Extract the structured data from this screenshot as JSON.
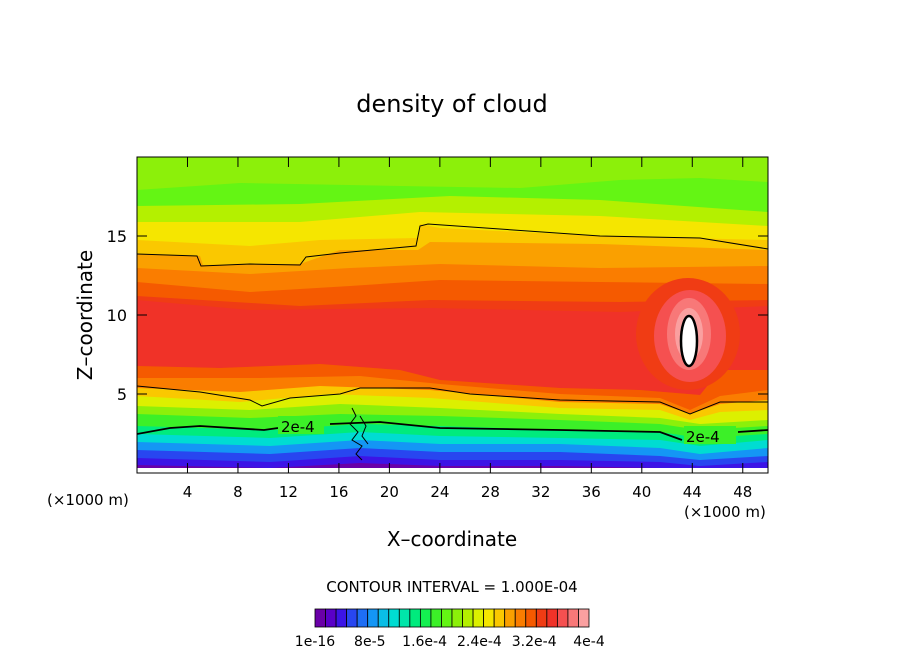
{
  "chart_data": {
    "type": "heatmap",
    "title": "density of cloud",
    "xlabel": "X–coordinate",
    "ylabel": "Z–coordinate",
    "x_units": "(×1000 m)",
    "y_units": "(×1000 m)",
    "xlim": [
      0,
      50
    ],
    "ylim": [
      0,
      20
    ],
    "x_ticks": [
      4,
      8,
      12,
      16,
      20,
      24,
      28,
      32,
      36,
      40,
      44,
      48
    ],
    "y_ticks": [
      5,
      10,
      15
    ],
    "contour_interval_text": "CONTOUR INTERVAL = 1.000E-04",
    "contour_label": "2e-4",
    "colorbar": {
      "levels": 26,
      "vmin": 1e-16,
      "vmax": 0.0004,
      "tick_labels": [
        "1e-16",
        "8e-5",
        "1.6e-4",
        "2.4e-4",
        "3.2e-4",
        "4e-4"
      ],
      "colors": [
        "#6a00a8",
        "#5a00c8",
        "#3c14e6",
        "#2846f0",
        "#1e6ef5",
        "#1496f5",
        "#0abee6",
        "#00dcd2",
        "#00e6aa",
        "#00eb7d",
        "#14f050",
        "#3cf028",
        "#64f514",
        "#8cf00a",
        "#b4f000",
        "#dcf000",
        "#f5e600",
        "#fac800",
        "#faa000",
        "#fa7d00",
        "#f55a00",
        "#f03c14",
        "#f03228",
        "#f55050",
        "#f87878",
        "#faa0a0"
      ]
    }
  }
}
